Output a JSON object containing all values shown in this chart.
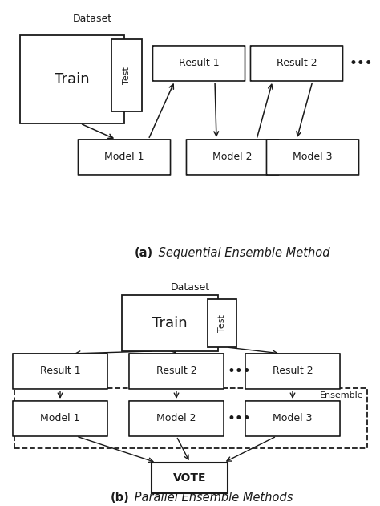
{
  "fig_width": 4.74,
  "fig_height": 6.31,
  "bg_color": "#ffffff",
  "edge_color": "#1a1a1a",
  "text_color": "#1a1a1a",
  "panel_a": {
    "dataset_label": "Dataset",
    "train_label": "Train",
    "test_label": "Test",
    "result1_label": "Result 1",
    "result2_label": "Result 2",
    "model1_label": "Model 1",
    "model2_label": "Model 2",
    "model3_label": "Model 3"
  },
  "panel_b": {
    "dataset_label": "Dataset",
    "train_label": "Train",
    "test_label": "Test",
    "result1_label": "Result 1",
    "result2_label": "Result 2",
    "result3_label": "Result 2",
    "model1_label": "Model 1",
    "model2_label": "Model 2",
    "model3_label": "Model 3",
    "vote_label": "VOTE",
    "ensemble_label": "Ensemble"
  },
  "caption_a_bold": "(a)",
  "caption_a_rest": " Sequential Ensemble Method",
  "caption_b_bold": "(b)",
  "caption_b_rest": " Parallel Ensemble Methods"
}
